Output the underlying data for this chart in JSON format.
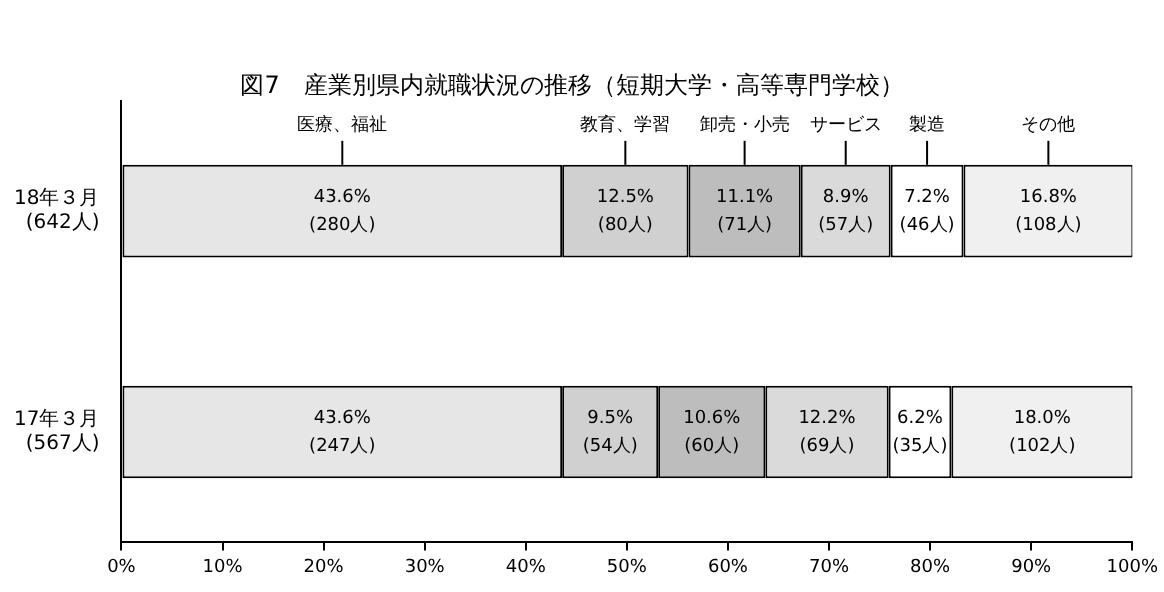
{
  "chart_data": {
    "type": "bar",
    "orientation": "horizontal",
    "stacked": true,
    "title": "図7　産業別県内就職状況の推移（短期大学・高等専門学校）",
    "categories": [
      "18年３月\n(642人)",
      "17年３月\n(567人)"
    ],
    "series": [
      {
        "name": "医療、福祉",
        "color": "#e6e6e6",
        "values": [
          43.6,
          43.6
        ],
        "value_labels": [
          "43.6%\n(280人)",
          "43.6%\n(247人)"
        ]
      },
      {
        "name": "教育、学習",
        "color": "#d0d0d0",
        "values": [
          12.5,
          9.5
        ],
        "value_labels": [
          "12.5%\n(80人)",
          "9.5%\n(54人)"
        ]
      },
      {
        "name": "卸売・小売",
        "color": "#bdbdbd",
        "values": [
          11.1,
          10.6
        ],
        "value_labels": [
          "11.1%\n(71人)",
          "10.6%\n(60人)"
        ]
      },
      {
        "name": "サービス",
        "color": "#dadada",
        "values": [
          8.9,
          12.2
        ],
        "value_labels": [
          "8.9%\n(57人)",
          "12.2%\n(69人)"
        ]
      },
      {
        "name": "製造",
        "color": "#ffffff",
        "values": [
          7.2,
          6.2
        ],
        "value_labels": [
          "7.2%\n(46人)",
          "6.2%\n(35人)"
        ]
      },
      {
        "name": "その他",
        "color": "#f0f0f0",
        "values": [
          16.8,
          18.0
        ],
        "value_labels": [
          "16.8%\n(108人)",
          "18.0%\n(102人)"
        ]
      }
    ],
    "xlim": [
      0,
      100
    ],
    "xticks": [
      {
        "value": 0,
        "label": "0%"
      },
      {
        "value": 10,
        "label": "10%"
      },
      {
        "value": 20,
        "label": "20%"
      },
      {
        "value": 30,
        "label": "30%"
      },
      {
        "value": 40,
        "label": "40%"
      },
      {
        "value": 50,
        "label": "50%"
      },
      {
        "value": 60,
        "label": "60%"
      },
      {
        "value": 70,
        "label": "70%"
      },
      {
        "value": 80,
        "label": "80%"
      },
      {
        "value": 90,
        "label": "90%"
      },
      {
        "value": 100,
        "label": "100%"
      }
    ],
    "grid": false,
    "legend": false
  }
}
